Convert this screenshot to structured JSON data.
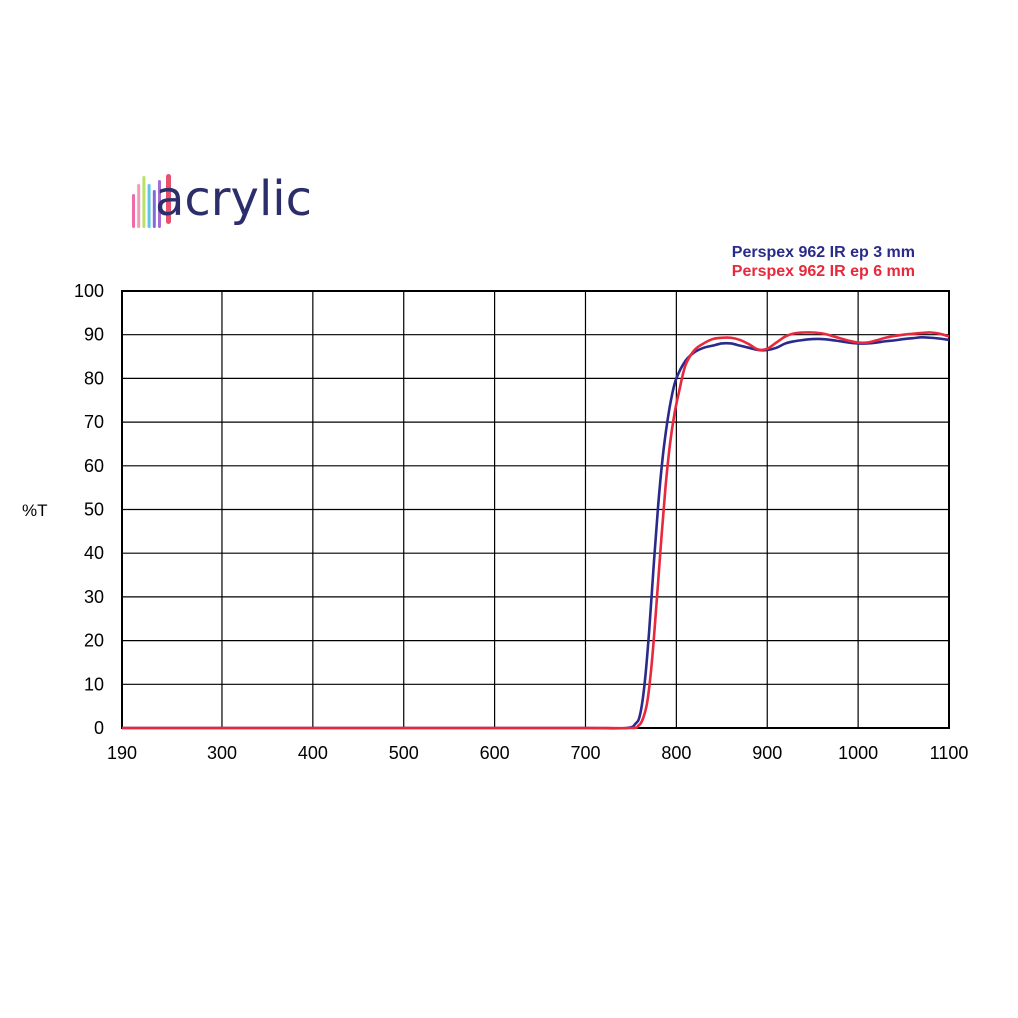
{
  "logo": {
    "text": "acrylic",
    "bar_colors": [
      "#f06aa6",
      "#f29bb6",
      "#b8e06a",
      "#5fc4e8",
      "#7e6bd6",
      "#a76bd6"
    ],
    "text_color": "#2b2e6b"
  },
  "chart_data": {
    "type": "line",
    "ylabel": "%T",
    "xlabel": "",
    "xlim": [
      190,
      1100
    ],
    "ylim": [
      0,
      100
    ],
    "x_ticks": [
      190,
      300,
      400,
      500,
      600,
      700,
      800,
      900,
      1000,
      1100
    ],
    "y_ticks": [
      0,
      10,
      20,
      30,
      40,
      50,
      60,
      70,
      80,
      90,
      100
    ],
    "x_tick_labels": [
      "190",
      "300",
      "400",
      "500",
      "600",
      "700",
      "800",
      "900",
      "1000",
      "1100"
    ],
    "y_tick_labels": [
      "0",
      "10",
      "20",
      "30",
      "40",
      "50",
      "60",
      "70",
      "80",
      "90",
      "100"
    ],
    "grid": true,
    "legend_position": "top-right",
    "series": [
      {
        "name": "Perspex 962 IR ep 3 mm",
        "color": "#2a2a8c",
        "x": [
          190,
          300,
          400,
          500,
          600,
          700,
          745,
          755,
          760,
          765,
          770,
          775,
          780,
          785,
          790,
          795,
          800,
          810,
          820,
          830,
          840,
          850,
          860,
          870,
          880,
          890,
          900,
          910,
          920,
          930,
          940,
          950,
          960,
          970,
          980,
          990,
          1000,
          1010,
          1020,
          1030,
          1040,
          1050,
          1060,
          1070,
          1080,
          1090,
          1100
        ],
        "y": [
          0,
          0,
          0,
          0,
          0,
          0,
          0,
          1,
          3,
          10,
          22,
          37,
          51,
          62,
          70,
          76,
          80,
          84,
          86,
          87,
          87.5,
          88,
          88,
          87.5,
          87,
          86.5,
          86.5,
          87,
          88,
          88.5,
          88.8,
          89,
          89,
          88.8,
          88.5,
          88.2,
          88,
          88,
          88.2,
          88.5,
          88.7,
          89,
          89.2,
          89.4,
          89.3,
          89.1,
          88.8
        ]
      },
      {
        "name": "Perspex 962 IR ep 6 mm",
        "color": "#e8283c",
        "x": [
          190,
          300,
          400,
          500,
          600,
          700,
          750,
          758,
          763,
          768,
          773,
          778,
          783,
          788,
          793,
          798,
          803,
          810,
          820,
          830,
          840,
          850,
          860,
          870,
          880,
          890,
          900,
          910,
          920,
          930,
          940,
          950,
          960,
          970,
          980,
          990,
          1000,
          1010,
          1020,
          1030,
          1040,
          1050,
          1060,
          1070,
          1080,
          1090,
          1100
        ],
        "y": [
          0,
          0,
          0,
          0,
          0,
          0,
          0,
          0.5,
          2,
          6,
          15,
          28,
          42,
          55,
          65,
          72,
          77,
          83,
          86.5,
          88,
          89,
          89.3,
          89.3,
          88.8,
          87.8,
          86.6,
          86.8,
          88.2,
          89.6,
          90.3,
          90.5,
          90.5,
          90.3,
          89.8,
          89.2,
          88.6,
          88.2,
          88.2,
          88.7,
          89.3,
          89.7,
          90,
          90.2,
          90.4,
          90.5,
          90.2,
          89.6
        ]
      }
    ]
  }
}
